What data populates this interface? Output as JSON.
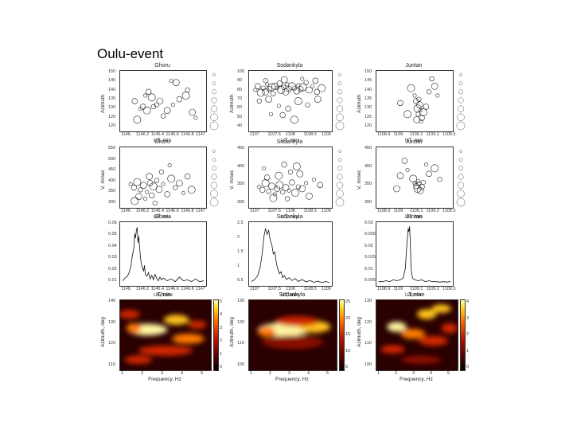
{
  "page": {
    "title": "Oulu-event"
  },
  "chart_data": [
    {
      "id": "r1c1",
      "type": "scatter",
      "title": "Ghoru",
      "xlabel": "UT, min",
      "ylabel": "Azimuth",
      "yticks": [
        "150",
        "145",
        "140",
        "135",
        "130",
        "125",
        "120"
      ],
      "xticks": [
        "1146.",
        "1146.2",
        "1146.4",
        "1146.6",
        "1146.8",
        "1147"
      ],
      "ylim": [
        120,
        150
      ],
      "xlim": [
        0,
        1
      ],
      "grid": false,
      "points": [
        [
          0.28,
          138
        ],
        [
          0.32,
          140
        ],
        [
          0.36,
          137
        ],
        [
          0.42,
          133
        ],
        [
          0.46,
          135
        ],
        [
          0.22,
          131
        ],
        [
          0.25,
          132
        ],
        [
          0.3,
          130
        ],
        [
          0.38,
          132
        ],
        [
          0.55,
          130
        ],
        [
          0.62,
          133
        ],
        [
          0.7,
          136
        ],
        [
          0.78,
          138
        ],
        [
          0.8,
          141
        ],
        [
          0.86,
          129
        ],
        [
          0.9,
          126
        ],
        [
          0.15,
          135
        ],
        [
          0.18,
          125
        ],
        [
          0.5,
          127
        ],
        [
          0.66,
          145
        ],
        [
          0.6,
          146
        ]
      ]
    },
    {
      "id": "r1c2",
      "type": "scatter",
      "title": "Sodankyla",
      "xlabel": "UT, min",
      "ylabel": "Azimuth",
      "yticks": [
        "100",
        "90",
        "80",
        "70",
        "60",
        "50",
        "40"
      ],
      "xticks": [
        "1107",
        "1107.5",
        "1108",
        "1108.5",
        "1109"
      ],
      "ylim": [
        40,
        100
      ],
      "xlim": [
        0,
        1
      ],
      "grid": false,
      "points": [
        [
          0.05,
          82
        ],
        [
          0.08,
          86
        ],
        [
          0.12,
          79
        ],
        [
          0.15,
          84
        ],
        [
          0.18,
          80
        ],
        [
          0.2,
          88
        ],
        [
          0.23,
          83
        ],
        [
          0.26,
          85
        ],
        [
          0.28,
          78
        ],
        [
          0.3,
          86
        ],
        [
          0.33,
          84
        ],
        [
          0.36,
          89
        ],
        [
          0.38,
          82
        ],
        [
          0.41,
          85
        ],
        [
          0.44,
          80
        ],
        [
          0.46,
          88
        ],
        [
          0.48,
          83
        ],
        [
          0.52,
          86
        ],
        [
          0.55,
          84
        ],
        [
          0.58,
          81
        ],
        [
          0.6,
          87
        ],
        [
          0.63,
          83
        ],
        [
          0.66,
          85
        ],
        [
          0.7,
          90
        ],
        [
          0.74,
          82
        ],
        [
          0.78,
          86
        ],
        [
          0.84,
          80
        ],
        [
          0.9,
          84
        ],
        [
          0.1,
          70
        ],
        [
          0.22,
          72
        ],
        [
          0.35,
          65
        ],
        [
          0.47,
          62
        ],
        [
          0.6,
          70
        ],
        [
          0.72,
          66
        ],
        [
          0.85,
          72
        ],
        [
          0.25,
          56
        ],
        [
          0.4,
          55
        ],
        [
          0.55,
          50
        ],
        [
          0.18,
          92
        ],
        [
          0.42,
          93
        ],
        [
          0.65,
          94
        ],
        [
          0.82,
          92
        ]
      ]
    },
    {
      "id": "r1c3",
      "type": "scatter",
      "title": "Juntan",
      "xlabel": "UT, min",
      "ylabel": "Azimuth",
      "yticks": [
        "150",
        "145",
        "140",
        "135",
        "130",
        "125",
        "120"
      ],
      "xticks": [
        "1108.9",
        "1109",
        "1109.1",
        "1109.2",
        "1109.3"
      ],
      "ylim": [
        120,
        150
      ],
      "xlim": [
        0,
        1
      ],
      "grid": false,
      "points": [
        [
          0.5,
          138
        ],
        [
          0.52,
          135
        ],
        [
          0.54,
          131
        ],
        [
          0.55,
          128
        ],
        [
          0.57,
          133
        ],
        [
          0.58,
          130
        ],
        [
          0.6,
          126
        ],
        [
          0.62,
          129
        ],
        [
          0.56,
          136
        ],
        [
          0.53,
          125
        ],
        [
          0.59,
          124
        ],
        [
          0.3,
          134
        ],
        [
          0.45,
          142
        ],
        [
          0.7,
          140
        ],
        [
          0.78,
          143
        ],
        [
          0.82,
          138
        ],
        [
          0.66,
          132
        ],
        [
          0.4,
          128
        ],
        [
          0.74,
          147
        ]
      ]
    },
    {
      "id": "r2c1",
      "type": "scatter",
      "title": "Ghoru",
      "xlabel": "UT, min",
      "ylabel": "V, m/sec",
      "yticks": [
        "550",
        "500",
        "450",
        "400",
        "350",
        "300"
      ],
      "xticks": [
        "1146.",
        "1146.2",
        "1146.4",
        "1146.6",
        "1146.8",
        "1147"
      ],
      "ylim": [
        300,
        550
      ],
      "xlim": [
        0,
        1
      ],
      "grid": false,
      "points": [
        [
          0.1,
          395
        ],
        [
          0.14,
          380
        ],
        [
          0.18,
          405
        ],
        [
          0.22,
          370
        ],
        [
          0.26,
          390
        ],
        [
          0.3,
          360
        ],
        [
          0.34,
          400
        ],
        [
          0.38,
          385
        ],
        [
          0.42,
          412
        ],
        [
          0.45,
          372
        ],
        [
          0.5,
          396
        ],
        [
          0.55,
          350
        ],
        [
          0.6,
          420
        ],
        [
          0.65,
          380
        ],
        [
          0.2,
          340
        ],
        [
          0.28,
          330
        ],
        [
          0.36,
          345
        ],
        [
          0.15,
          320
        ],
        [
          0.4,
          310
        ],
        [
          0.7,
          400
        ],
        [
          0.75,
          355
        ],
        [
          0.8,
          430
        ],
        [
          0.85,
          370
        ],
        [
          0.48,
          450
        ],
        [
          0.33,
          430
        ],
        [
          0.58,
          480
        ]
      ]
    },
    {
      "id": "r2c2",
      "type": "scatter",
      "title": "Sodankyla",
      "xlabel": "UT, min",
      "ylabel": "V, m/sec",
      "yticks": [
        "450",
        "400",
        "350",
        "300"
      ],
      "xticks": [
        "1107",
        "1107.5",
        "1108",
        "1108.5",
        "1109"
      ],
      "ylim": [
        300,
        450
      ],
      "xlim": [
        0,
        1
      ],
      "grid": false,
      "points": [
        [
          0.1,
          350
        ],
        [
          0.14,
          342
        ],
        [
          0.18,
          360
        ],
        [
          0.22,
          338
        ],
        [
          0.26,
          352
        ],
        [
          0.3,
          330
        ],
        [
          0.33,
          345
        ],
        [
          0.36,
          355
        ],
        [
          0.4,
          336
        ],
        [
          0.44,
          348
        ],
        [
          0.48,
          340
        ],
        [
          0.52,
          362
        ],
        [
          0.56,
          334
        ],
        [
          0.6,
          350
        ],
        [
          0.65,
          345
        ],
        [
          0.7,
          360
        ],
        [
          0.2,
          375
        ],
        [
          0.35,
          380
        ],
        [
          0.5,
          390
        ],
        [
          0.62,
          385
        ],
        [
          0.8,
          370
        ],
        [
          0.88,
          355
        ],
        [
          0.28,
          320
        ],
        [
          0.46,
          318
        ],
        [
          0.74,
          325
        ],
        [
          0.16,
          400
        ],
        [
          0.42,
          410
        ],
        [
          0.58,
          405
        ]
      ]
    },
    {
      "id": "r2c3",
      "type": "scatter",
      "title": "Juntan",
      "xlabel": "UT, min",
      "ylabel": "V, m/sec",
      "yticks": [
        "450",
        "400",
        "350",
        "300"
      ],
      "xticks": [
        "1108.9",
        "1109",
        "1109.1",
        "1109.2",
        "1109.3"
      ],
      "ylim": [
        300,
        450
      ],
      "xlim": [
        0,
        1
      ],
      "grid": false,
      "points": [
        [
          0.5,
          360
        ],
        [
          0.52,
          352
        ],
        [
          0.54,
          345
        ],
        [
          0.56,
          358
        ],
        [
          0.58,
          340
        ],
        [
          0.55,
          366
        ],
        [
          0.6,
          350
        ],
        [
          0.48,
          372
        ],
        [
          0.62,
          362
        ],
        [
          0.3,
          380
        ],
        [
          0.4,
          395
        ],
        [
          0.7,
          385
        ],
        [
          0.78,
          400
        ],
        [
          0.85,
          370
        ],
        [
          0.25,
          345
        ],
        [
          0.66,
          410
        ],
        [
          0.36,
          420
        ]
      ]
    },
    {
      "id": "r3c1",
      "type": "line",
      "title": "Ghoru",
      "xlabel": "UT, min",
      "ylabel": "",
      "yticks": [
        "0.06",
        "0.05",
        "0.04",
        "0.03",
        "0.02",
        "0.01"
      ],
      "xticks": [
        "1146.",
        "1146.2",
        "1146.4",
        "1146.6",
        "1146.8",
        "1147"
      ],
      "ylim": [
        0,
        0.065
      ],
      "xlim": [
        0,
        1
      ],
      "grid": false,
      "x": [
        0,
        0.03,
        0.06,
        0.08,
        0.1,
        0.12,
        0.14,
        0.15,
        0.16,
        0.17,
        0.18,
        0.19,
        0.2,
        0.21,
        0.22,
        0.23,
        0.24,
        0.25,
        0.26,
        0.27,
        0.28,
        0.3,
        0.32,
        0.34,
        0.36,
        0.38,
        0.4,
        0.42,
        0.44,
        0.46,
        0.48,
        0.5,
        0.55,
        0.6,
        0.65,
        0.7,
        0.75,
        0.8,
        0.85,
        0.9,
        0.95,
        1.0
      ],
      "y": [
        0.003,
        0.006,
        0.008,
        0.012,
        0.018,
        0.03,
        0.04,
        0.055,
        0.05,
        0.058,
        0.062,
        0.045,
        0.052,
        0.04,
        0.03,
        0.022,
        0.018,
        0.016,
        0.014,
        0.02,
        0.01,
        0.008,
        0.012,
        0.005,
        0.009,
        0.004,
        0.01,
        0.006,
        0.003,
        0.007,
        0.004,
        0.006,
        0.003,
        0.005,
        0.002,
        0.007,
        0.003,
        0.004,
        0.002,
        0.005,
        0.002,
        0.003
      ]
    },
    {
      "id": "r3c2",
      "type": "line",
      "title": "Sodankyla",
      "xlabel": "UT, min",
      "ylabel": "",
      "yticks": [
        "2.5",
        "2",
        "1.5",
        "1",
        "0.5"
      ],
      "xticks": [
        "1107",
        "1107.5",
        "1108",
        "1108.5",
        "1109"
      ],
      "ylim": [
        0,
        3.0
      ],
      "xlim": [
        0,
        1
      ],
      "grid": false,
      "x": [
        0,
        0.04,
        0.08,
        0.11,
        0.14,
        0.16,
        0.18,
        0.2,
        0.22,
        0.24,
        0.26,
        0.28,
        0.3,
        0.32,
        0.34,
        0.36,
        0.38,
        0.4,
        0.42,
        0.45,
        0.48,
        0.52,
        0.56,
        0.6,
        0.65,
        0.7,
        0.75,
        0.8,
        0.85,
        0.9,
        0.95,
        1.0
      ],
      "y": [
        0.1,
        0.2,
        0.4,
        0.8,
        1.6,
        2.4,
        2.8,
        2.5,
        2.7,
        2.2,
        2.0,
        1.5,
        1.6,
        1.0,
        0.7,
        0.5,
        0.6,
        0.3,
        0.4,
        0.2,
        0.3,
        0.15,
        0.25,
        0.1,
        0.2,
        0.08,
        0.15,
        0.06,
        0.12,
        0.05,
        0.1,
        0.05
      ]
    },
    {
      "id": "r3c3",
      "type": "line",
      "title": "Juntan",
      "xlabel": "UT, min",
      "ylabel": "",
      "yticks": [
        "0.03",
        "0.025",
        "0.02",
        "0.015",
        "0.01",
        "0.005"
      ],
      "xticks": [
        "1108.9",
        "1109",
        "1109.1",
        "1109.2",
        "1109.3"
      ],
      "ylim": [
        0,
        0.032
      ],
      "xlim": [
        0,
        1
      ],
      "grid": false,
      "x": [
        0,
        0.05,
        0.1,
        0.15,
        0.2,
        0.25,
        0.3,
        0.34,
        0.37,
        0.39,
        0.41,
        0.42,
        0.43,
        0.44,
        0.45,
        0.47,
        0.5,
        0.55,
        0.6,
        0.65,
        0.7,
        0.75,
        0.8,
        0.85,
        0.9,
        0.95,
        1.0
      ],
      "y": [
        0.001,
        0.001,
        0.0015,
        0.001,
        0.002,
        0.0015,
        0.002,
        0.003,
        0.008,
        0.02,
        0.03,
        0.028,
        0.031,
        0.022,
        0.008,
        0.003,
        0.002,
        0.0015,
        0.002,
        0.001,
        0.0015,
        0.001,
        0.001,
        0.0008,
        0.001,
        0.0008,
        0.001
      ]
    },
    {
      "id": "r4c1",
      "type": "heatmap",
      "title": "Ghoru",
      "xlabel": "Frequency, Hz",
      "ylabel": "Azimuth, deg",
      "yticks": [
        "140",
        "130",
        "120",
        "110"
      ],
      "xticks": [
        "1",
        "2",
        "3",
        "4",
        "5"
      ],
      "cbar_ticks": [
        "5",
        "4",
        "3",
        "2",
        "1",
        "0"
      ],
      "blobs": [
        [
          0.3,
          0.42,
          0.22,
          0.07,
          1.0
        ],
        [
          0.62,
          0.28,
          0.14,
          0.06,
          0.9
        ],
        [
          0.15,
          0.4,
          0.08,
          0.06,
          0.7
        ],
        [
          0.75,
          0.55,
          0.18,
          0.06,
          0.6
        ],
        [
          0.5,
          0.72,
          0.3,
          0.06,
          0.55
        ],
        [
          0.2,
          0.85,
          0.15,
          0.05,
          0.5
        ],
        [
          0.85,
          0.35,
          0.1,
          0.05,
          0.5
        ],
        [
          0.1,
          0.2,
          0.12,
          0.05,
          0.45
        ]
      ]
    },
    {
      "id": "r4c2",
      "type": "heatmap",
      "title": "Sodankyla",
      "xlabel": "Frequency, Hz",
      "ylabel": "Azimuth, deg",
      "yticks": [
        "130",
        "120",
        "110",
        "100"
      ],
      "xticks": [
        "1",
        "2",
        "3",
        "4",
        "5"
      ],
      "cbar_ticks": [
        "25",
        "20",
        "15",
        "10",
        "5"
      ],
      "blobs": [
        [
          0.4,
          0.42,
          0.3,
          0.08,
          1.0
        ],
        [
          0.75,
          0.38,
          0.18,
          0.07,
          0.85
        ],
        [
          0.2,
          0.45,
          0.1,
          0.06,
          0.7
        ],
        [
          0.55,
          0.3,
          0.25,
          0.06,
          0.45
        ],
        [
          0.5,
          0.6,
          0.35,
          0.08,
          0.35
        ]
      ]
    },
    {
      "id": "r4c3",
      "type": "heatmap",
      "title": "Juntan",
      "xlabel": "Frequency, Hz",
      "ylabel": "Azimuth, deg",
      "yticks": [
        "130",
        "120",
        "110",
        "100"
      ],
      "xticks": [
        "1",
        "2",
        "3",
        "4",
        "5"
      ],
      "cbar_ticks": [
        "4",
        "3",
        "2",
        "1",
        "0"
      ],
      "blobs": [
        [
          0.25,
          0.38,
          0.12,
          0.06,
          1.0
        ],
        [
          0.62,
          0.2,
          0.12,
          0.06,
          0.9
        ],
        [
          0.8,
          0.12,
          0.12,
          0.05,
          0.8
        ],
        [
          0.45,
          0.48,
          0.15,
          0.06,
          0.6
        ],
        [
          0.7,
          0.58,
          0.18,
          0.06,
          0.55
        ],
        [
          0.2,
          0.7,
          0.15,
          0.05,
          0.45
        ],
        [
          0.55,
          0.85,
          0.25,
          0.05,
          0.4
        ],
        [
          0.9,
          0.4,
          0.1,
          0.06,
          0.5
        ]
      ]
    }
  ]
}
